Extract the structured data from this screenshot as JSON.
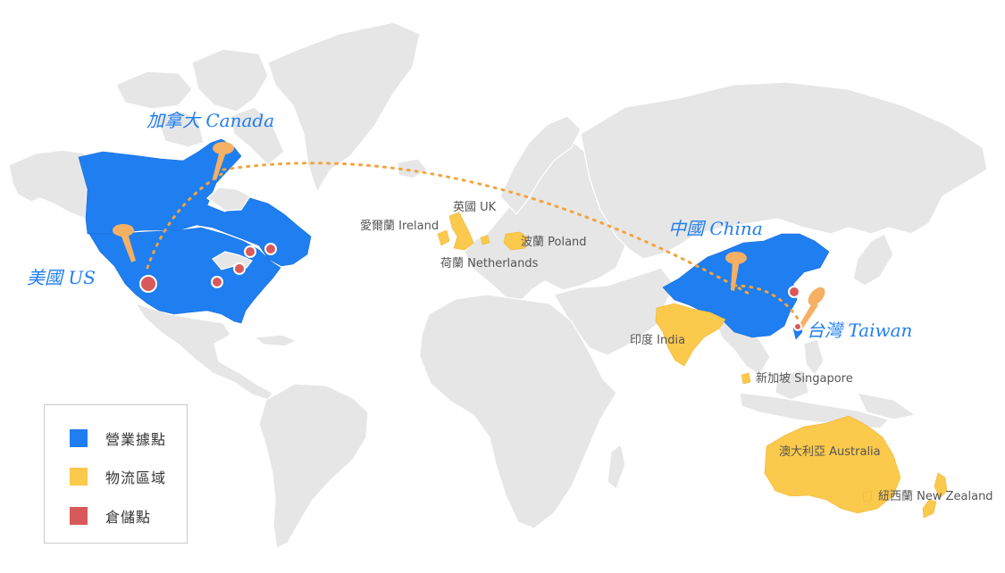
{
  "labels": {
    "canada": "加拿大 Canada",
    "us": "美國 US",
    "china": "中國 China",
    "taiwan": "台灣 Taiwan",
    "uk": "英國 UK",
    "ireland": "愛爾蘭 Ireland",
    "netherlands": "荷蘭 Netherlands",
    "poland": "波蘭 Poland",
    "india": "印度 India",
    "singapore": "新加坡 Singapore",
    "australia": "澳大利亞 Australia",
    "new_zealand": "紐西蘭 New Zealand"
  },
  "legend": [
    {
      "label": "營業據點",
      "color": "#1f7ef0"
    },
    {
      "label": "物流區域",
      "color": "#fbc94b"
    },
    {
      "label": "倉儲點",
      "color": "#d9595b"
    }
  ],
  "colors": {
    "land": "#e6e6e6",
    "business": "#1f7ef0",
    "logistics": "#fbc94b",
    "warehouse": "#d9595b",
    "route": "#f3a33c",
    "pin": "#f5b063"
  }
}
